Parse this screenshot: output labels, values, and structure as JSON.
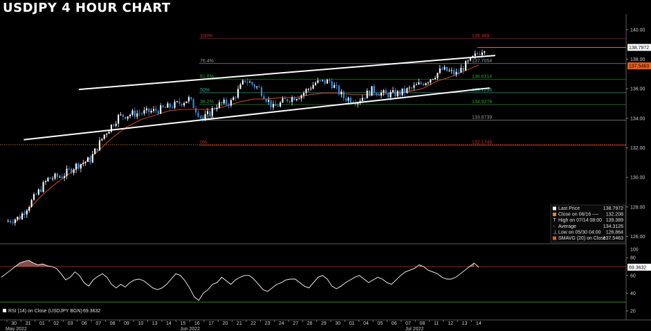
{
  "title": "USDJPY 4 HOUR CHART",
  "colors": {
    "background": "#000000",
    "up_candle": "#ffffff",
    "down_candle": "#2f8fe8",
    "sma": "#c0431e",
    "rsi_line": "#ffffff",
    "rsi_overbought": "#c02020",
    "rsi_oversold": "#1f8a1f",
    "channel": "#ffffff",
    "last_price_tag": "#ffffff",
    "sma_tag": "#e8601c"
  },
  "chart_data": [
    {
      "type": "candlestick",
      "title": "USDJPY 4 HOUR CHART",
      "ylim": [
        125.6,
        140.6
      ],
      "yticks": [
        "140.00",
        "138.00",
        "136.00",
        "134.00",
        "132.00",
        "130.00",
        "128.00",
        "126.00"
      ],
      "ytick_values": [
        140,
        138,
        136,
        134,
        132,
        130,
        128,
        126
      ],
      "x_day_labels": [
        "30",
        "31",
        "01",
        "02",
        "03",
        "06",
        "07",
        "08",
        "09",
        "10",
        "13",
        "14",
        "15",
        "16",
        "17",
        "20",
        "21",
        "22",
        "23",
        "24",
        "27",
        "28",
        "29",
        "30",
        "01",
        "04",
        "05",
        "06",
        "07",
        "08",
        "11",
        "12",
        "13",
        "14"
      ],
      "x_month_labels": [
        {
          "label": "May 2022",
          "day_index": 0
        },
        {
          "label": "Jun 2022",
          "day_index": 12
        },
        {
          "label": "Jul 2022",
          "day_index": 28
        }
      ],
      "daily_closes": [
        127.3,
        128.6,
        129.9,
        130.1,
        130.8,
        131.2,
        132.9,
        134.1,
        134.3,
        134.4,
        134.6,
        134.9,
        135.3,
        133.9,
        134.9,
        135.1,
        136.6,
        136.0,
        134.7,
        135.3,
        135.6,
        136.4,
        136.5,
        135.4,
        135.2,
        135.9,
        135.6,
        135.7,
        136.1,
        136.6,
        137.3,
        137.0,
        137.9,
        138.8
      ],
      "sma_values": [
        126.9,
        127.8,
        128.8,
        129.6,
        130.3,
        131.0,
        131.8,
        132.7,
        133.4,
        133.9,
        134.2,
        134.5,
        134.6,
        134.6,
        134.6,
        134.8,
        135.1,
        135.3,
        135.3,
        135.4,
        135.4,
        135.6,
        135.7,
        135.7,
        135.6,
        135.6,
        135.6,
        135.7,
        135.8,
        136.0,
        136.5,
        136.8,
        137.2,
        137.6
      ],
      "last_price": 138.7972,
      "sma_last": 137.5463,
      "fibonacci": [
        {
          "label": "100%",
          "value": 139.389,
          "value_text": "139.389",
          "color": "#d02828"
        },
        {
          "label": "76.4%",
          "value": 137.7054,
          "value_text": "137.7054",
          "color": "#9a9a9a"
        },
        {
          "label": "61.8%",
          "value": 136.6314,
          "value_text": "136.6314",
          "color": "#2ea02e"
        },
        {
          "label": "50%",
          "value": 135.7296,
          "value_text": "135.7296",
          "color": "#2fb0a0"
        },
        {
          "label": "38.2%",
          "value": 134.9278,
          "value_text": "134.9278",
          "color": "#2ea02e"
        },
        {
          "label": "23.6%",
          "value": 133.8739,
          "value_text": "133.8739",
          "color": "#9a9a9a"
        },
        {
          "label": "0%",
          "value": 132.1749,
          "value_text": "132.1749",
          "color": "#d02828"
        }
      ],
      "horizontal_lines": [
        {
          "name": "last-price-line",
          "value": 138.7972,
          "color": "#e08a2a"
        },
        {
          "name": "close-0616-line",
          "value": 132.208,
          "color": "#e08a2a"
        }
      ],
      "channel_lines": [
        {
          "name": "upper-channel",
          "x1_day": 5.1,
          "y1": 135.95,
          "x2_day": 33.7,
          "y2": 138.25
        },
        {
          "name": "lower-channel",
          "x1_day": 1.2,
          "y1": 132.55,
          "x2_day": 33.3,
          "y2": 136.05
        }
      ],
      "legend": [
        {
          "swatch": "#ffffff",
          "label": "Last Price",
          "value": "138.7972"
        },
        {
          "swatch": "#e08a2a",
          "label": "Close on 06/16 ----",
          "value": "132.208"
        },
        {
          "swatch": "none",
          "label": "High on 07/14 08:00",
          "value": "139.389",
          "marker": "T"
        },
        {
          "swatch": "none",
          "label": "Average",
          "value": "134.3126",
          "marker": "-"
        },
        {
          "swatch": "none",
          "label": "Low on 05/30 04:00",
          "value": "126.864",
          "marker": "⊥"
        },
        {
          "swatch": "#e8601c",
          "label": "SMAVG (20)  on Close",
          "value": "137.5463"
        }
      ],
      "price_tags": [
        {
          "value_text": "138.7972",
          "color": "#ffffff"
        },
        {
          "value_text": "137.5463",
          "color": "#e8601c"
        }
      ]
    },
    {
      "type": "line",
      "title": "RSI (14)",
      "legend_text": "RSI (14)  on Close (USDJPY BGN)",
      "legend_value": "69.3632",
      "ylim": [
        13,
        88
      ],
      "yticks": [
        "80",
        "60",
        "40",
        "20"
      ],
      "ytick_values": [
        80,
        60,
        40,
        20
      ],
      "extra_labels": [
        "100"
      ],
      "overbought": 70,
      "oversold": 30,
      "last_value": 69.3632,
      "last_value_text": "69.3632",
      "values": [
        58,
        62,
        66,
        70,
        74,
        76,
        77,
        74,
        72,
        73,
        71,
        70,
        68,
        62,
        55,
        58,
        64,
        60,
        52,
        48,
        55,
        59,
        62,
        58,
        50,
        46,
        50,
        47,
        52,
        55,
        56,
        54,
        50,
        46,
        44,
        46,
        50,
        56,
        62,
        60,
        54,
        46,
        36,
        32,
        40,
        44,
        50,
        52,
        58,
        54,
        50,
        55,
        58,
        60,
        60,
        56,
        50,
        44,
        42,
        46,
        50,
        52,
        55,
        56,
        56,
        52,
        48,
        46,
        52,
        58,
        60,
        56,
        48,
        45,
        48,
        52,
        55,
        58,
        60,
        56,
        52,
        55,
        58,
        56,
        52,
        50,
        55,
        60,
        64,
        66,
        68,
        72,
        70,
        66,
        64,
        62,
        58,
        56,
        56,
        58,
        62,
        66,
        70,
        74,
        69.3632
      ]
    }
  ]
}
